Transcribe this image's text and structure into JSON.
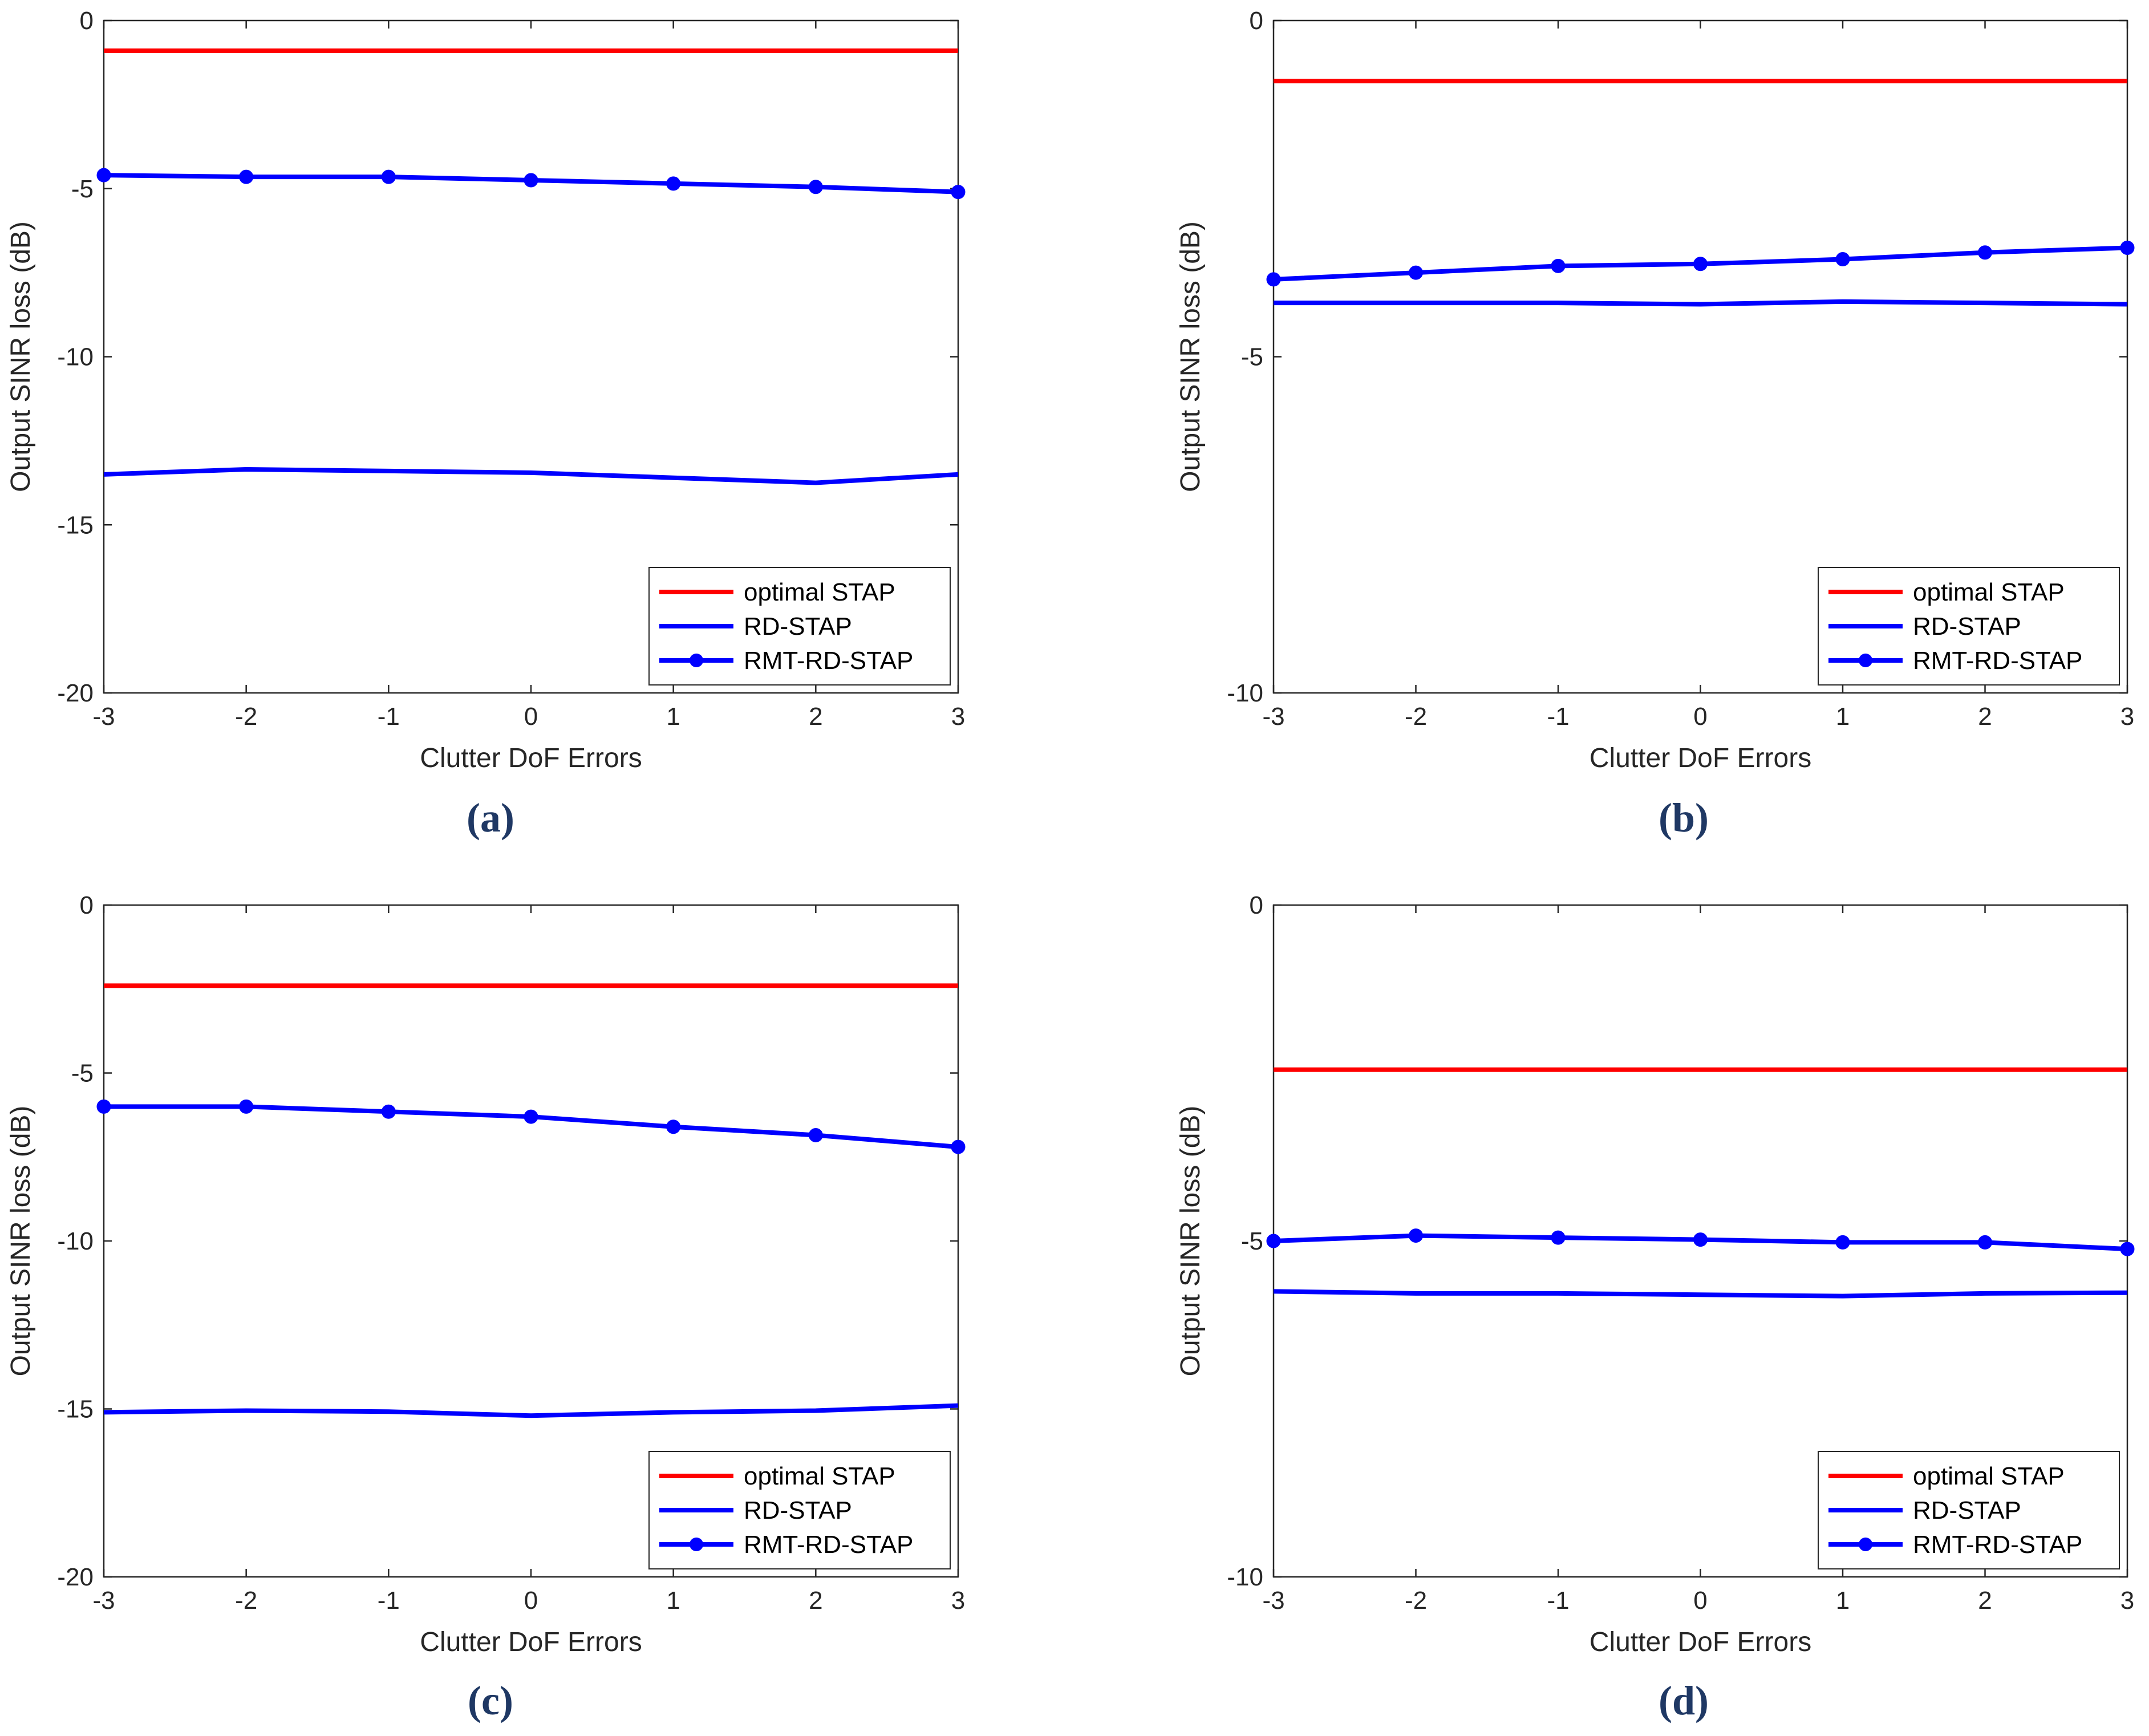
{
  "chart_data": [
    {
      "type": "line",
      "caption": "(a)",
      "xlabel": "Clutter DoF Errors",
      "ylabel": "Output SINR loss (dB)",
      "xlim": [
        -3,
        3
      ],
      "ylim": [
        -20,
        0
      ],
      "x": [
        -3,
        -2,
        -1,
        0,
        1,
        2,
        3
      ],
      "xticks": [
        "-3",
        "-2",
        "-1",
        "0",
        "1",
        "2",
        "3"
      ],
      "yticks": [
        "0",
        "-5",
        "-10",
        "-15",
        "-20"
      ],
      "yticks_values": [
        0,
        -5,
        -10,
        -15,
        -20
      ],
      "legend_position": "bottom-right",
      "series": [
        {
          "name": "optimal STAP",
          "color": "#ff0000",
          "marker": "none",
          "values": [
            -0.9,
            -0.9,
            -0.9,
            -0.9,
            -0.9,
            -0.9,
            -0.9
          ]
        },
        {
          "name": "RD-STAP",
          "color": "#0000ff",
          "marker": "none",
          "values": [
            -13.5,
            -13.35,
            -13.4,
            -13.45,
            -13.6,
            -13.75,
            -13.5
          ]
        },
        {
          "name": "RMT-RD-STAP",
          "color": "#0000ff",
          "marker": "circle",
          "values": [
            -4.6,
            -4.65,
            -4.65,
            -4.75,
            -4.85,
            -4.95,
            -5.1
          ]
        }
      ]
    },
    {
      "type": "line",
      "caption": "(b)",
      "xlabel": "Clutter DoF Errors",
      "ylabel": "Output SINR loss (dB)",
      "xlim": [
        -3,
        3
      ],
      "ylim": [
        -10,
        0
      ],
      "x": [
        -3,
        -2,
        -1,
        0,
        1,
        2,
        3
      ],
      "xticks": [
        "-3",
        "-2",
        "-1",
        "0",
        "1",
        "2",
        "3"
      ],
      "yticks": [
        "0",
        "-5",
        "-10"
      ],
      "yticks_values": [
        0,
        -5,
        -10
      ],
      "legend_position": "bottom-right",
      "series": [
        {
          "name": "optimal STAP",
          "color": "#ff0000",
          "marker": "none",
          "values": [
            -0.9,
            -0.9,
            -0.9,
            -0.9,
            -0.9,
            -0.9,
            -0.9
          ]
        },
        {
          "name": "RD-STAP",
          "color": "#0000ff",
          "marker": "none",
          "values": [
            -4.2,
            -4.2,
            -4.2,
            -4.22,
            -4.18,
            -4.2,
            -4.22
          ]
        },
        {
          "name": "RMT-RD-STAP",
          "color": "#0000ff",
          "marker": "circle",
          "values": [
            -3.85,
            -3.75,
            -3.65,
            -3.62,
            -3.55,
            -3.45,
            -3.38
          ]
        }
      ]
    },
    {
      "type": "line",
      "caption": "(c)",
      "xlabel": "Clutter DoF Errors",
      "ylabel": "Output SINR loss (dB)",
      "xlim": [
        -3,
        3
      ],
      "ylim": [
        -20,
        0
      ],
      "x": [
        -3,
        -2,
        -1,
        0,
        1,
        2,
        3
      ],
      "xticks": [
        "-3",
        "-2",
        "-1",
        "0",
        "1",
        "2",
        "3"
      ],
      "yticks": [
        "0",
        "-5",
        "-10",
        "-15",
        "-20"
      ],
      "yticks_values": [
        0,
        -5,
        -10,
        -15,
        -20
      ],
      "legend_position": "bottom-right",
      "series": [
        {
          "name": "optimal STAP",
          "color": "#ff0000",
          "marker": "none",
          "values": [
            -2.4,
            -2.4,
            -2.4,
            -2.4,
            -2.4,
            -2.4,
            -2.4
          ]
        },
        {
          "name": "RD-STAP",
          "color": "#0000ff",
          "marker": "none",
          "values": [
            -15.1,
            -15.05,
            -15.08,
            -15.2,
            -15.1,
            -15.05,
            -14.9
          ]
        },
        {
          "name": "RMT-RD-STAP",
          "color": "#0000ff",
          "marker": "circle",
          "values": [
            -6.0,
            -6.0,
            -6.15,
            -6.3,
            -6.6,
            -6.85,
            -7.2
          ]
        }
      ]
    },
    {
      "type": "line",
      "caption": "(d)",
      "xlabel": "Clutter DoF Errors",
      "ylabel": "Output SINR loss (dB)",
      "xlim": [
        -3,
        3
      ],
      "ylim": [
        -10,
        0
      ],
      "x": [
        -3,
        -2,
        -1,
        0,
        1,
        2,
        3
      ],
      "xticks": [
        "-3",
        "-2",
        "-1",
        "0",
        "1",
        "2",
        "3"
      ],
      "yticks": [
        "0",
        "-5",
        "-10"
      ],
      "yticks_values": [
        0,
        -5,
        -10
      ],
      "legend_position": "bottom-right",
      "series": [
        {
          "name": "optimal STAP",
          "color": "#ff0000",
          "marker": "none",
          "values": [
            -2.45,
            -2.45,
            -2.45,
            -2.45,
            -2.45,
            -2.45,
            -2.45
          ]
        },
        {
          "name": "RD-STAP",
          "color": "#0000ff",
          "marker": "none",
          "values": [
            -5.75,
            -5.78,
            -5.78,
            -5.8,
            -5.82,
            -5.78,
            -5.77
          ]
        },
        {
          "name": "RMT-RD-STAP",
          "color": "#0000ff",
          "marker": "circle",
          "values": [
            -5.0,
            -4.92,
            -4.95,
            -4.98,
            -5.02,
            -5.02,
            -5.12
          ]
        }
      ]
    }
  ]
}
